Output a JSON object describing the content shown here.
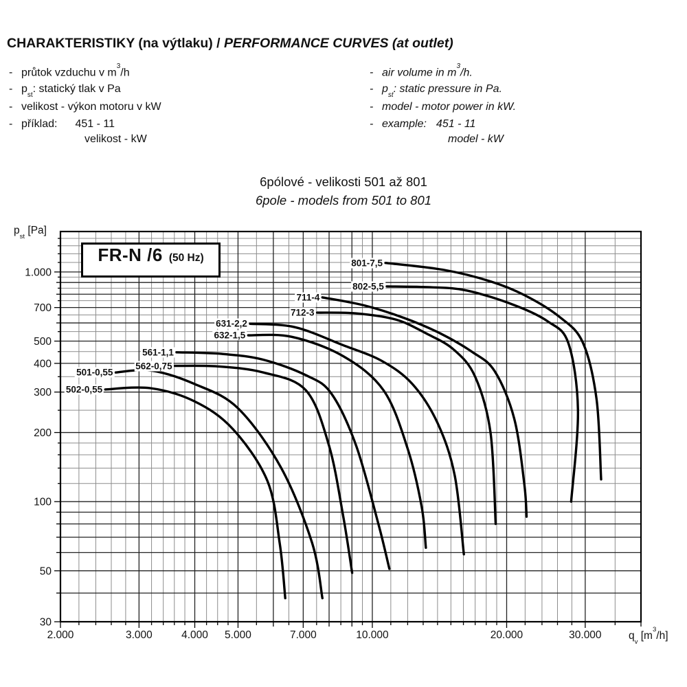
{
  "header": {
    "title_cz": "CHARAKTERISTIKY (na výtlaku) / ",
    "title_en": "PERFORMANCE CURVES (at outlet)"
  },
  "bullets": {
    "dash": "-"
  },
  "bullets_cz": {
    "air_pre": "průtok vzduchu v m",
    "air_sup": "3",
    "air_post": "/h",
    "pst_p": "p",
    "pst_sub": "st",
    "pst_post": ": statický tlak v Pa",
    "model": "velikost - výkon motoru v kW",
    "example_label": "příklad:",
    "example_value": "451 - 11",
    "example_sub": "velikost - kW"
  },
  "bullets_en": {
    "air_pre": "air volume in m",
    "air_sup": "3",
    "air_post": "/h.",
    "pst_p": "p",
    "pst_sub": "st",
    "pst_post": ": static pressure in Pa.",
    "model": "model - motor power in kW.",
    "example_label": "example:",
    "example_value": "451 - 11",
    "example_sub": "model - kW"
  },
  "subtitle": {
    "cz": "6pólové - velikosti 501 až 801",
    "en": "6pole - models from 501 to 801"
  },
  "chart_data": {
    "type": "line",
    "title": "FR-N /6 (50 Hz)",
    "box_title": "FR-N /6",
    "box_title_sub": "(50 Hz)",
    "ylabel": "pst [Pa]",
    "xlabel": "qv [m3/h]",
    "y_axis_label": {
      "pre": "p",
      "sub": "st",
      "post": " [Pa]"
    },
    "x_axis_label": {
      "pre": "q",
      "sub": "v",
      "mid": " [m",
      "sup": "3",
      "post": "/h]"
    },
    "x_scale": "log",
    "y_scale": "log",
    "xlim": [
      2000,
      40000
    ],
    "ylim": [
      30,
      1500
    ],
    "grid": "on",
    "x_ticks": [
      {
        "v": 2000,
        "label": "2.000"
      },
      {
        "v": 3000,
        "label": "3.000"
      },
      {
        "v": 4000,
        "label": "4.000"
      },
      {
        "v": 5000,
        "label": "5.000"
      },
      {
        "v": 7000,
        "label": "7.000"
      },
      {
        "v": 10000,
        "label": "10.000"
      },
      {
        "v": 20000,
        "label": "20.000"
      },
      {
        "v": 30000,
        "label": "30.000"
      }
    ],
    "y_ticks": [
      {
        "v": 1000,
        "label": "1.000"
      },
      {
        "v": 700,
        "label": "700"
      },
      {
        "v": 500,
        "label": "500"
      },
      {
        "v": 400,
        "label": "400"
      },
      {
        "v": 300,
        "label": "300"
      },
      {
        "v": 200,
        "label": "200"
      },
      {
        "v": 100,
        "label": "100"
      },
      {
        "v": 50,
        "label": "50"
      },
      {
        "v": 30,
        "label": "30"
      }
    ],
    "x_grid_major": [
      2000,
      3000,
      4000,
      5000,
      6000,
      7000,
      8000,
      9000,
      10000,
      20000,
      30000,
      40000
    ],
    "x_grid_minor": [
      2200,
      2400,
      2600,
      2800,
      3200,
      3400,
      3600,
      3800,
      4250,
      4500,
      4750,
      5500,
      6500,
      7500,
      8500,
      9500,
      11000,
      12000,
      13000,
      14000,
      15000,
      16000,
      17000,
      18000,
      19000,
      22000,
      24000,
      26000,
      28000,
      35000
    ],
    "y_grid_major": [
      30,
      40,
      50,
      60,
      70,
      80,
      90,
      100,
      200,
      300,
      400,
      500,
      600,
      700,
      800,
      900,
      1000
    ],
    "y_grid_minor": [
      120,
      140,
      160,
      180,
      250,
      350,
      450,
      550,
      650,
      750,
      850,
      950,
      1100,
      1200,
      1300,
      1400
    ],
    "series": [
      {
        "name": "801-7,5",
        "points": [
          [
            10700,
            1095
          ],
          [
            14500,
            1020
          ],
          [
            18400,
            910
          ],
          [
            22000,
            790
          ],
          [
            26200,
            640
          ],
          [
            29600,
            495
          ],
          [
            31800,
            280
          ],
          [
            32560,
            125
          ]
        ]
      },
      {
        "name": "802-5,5",
        "points": [
          [
            10770,
            865
          ],
          [
            13500,
            858
          ],
          [
            16300,
            830
          ],
          [
            20700,
            720
          ],
          [
            24700,
            610
          ],
          [
            27500,
            490
          ],
          [
            28900,
            250
          ],
          [
            27900,
            100
          ]
        ]
      },
      {
        "name": "711-4",
        "points": [
          [
            7730,
            775
          ],
          [
            9600,
            715
          ],
          [
            11800,
            630
          ],
          [
            14200,
            540
          ],
          [
            16700,
            450
          ],
          [
            18800,
            370
          ],
          [
            20800,
            230
          ],
          [
            21900,
            120
          ],
          [
            22170,
            86
          ]
        ]
      },
      {
        "name": "712-3",
        "points": [
          [
            7520,
            665
          ],
          [
            9200,
            660
          ],
          [
            11300,
            620
          ],
          [
            13200,
            540
          ],
          [
            15200,
            460
          ],
          [
            17000,
            350
          ],
          [
            18400,
            200
          ],
          [
            18900,
            80
          ]
        ]
      },
      {
        "name": "631-2,2",
        "points": [
          [
            5320,
            595
          ],
          [
            6700,
            575
          ],
          [
            8600,
            480
          ],
          [
            10500,
            410
          ],
          [
            12300,
            325
          ],
          [
            14000,
            220
          ],
          [
            15300,
            130
          ],
          [
            16040,
            59
          ]
        ]
      },
      {
        "name": "632-1,5",
        "points": [
          [
            5270,
            530
          ],
          [
            6600,
            522
          ],
          [
            8600,
            430
          ],
          [
            10600,
            305
          ],
          [
            12000,
            170
          ],
          [
            12900,
            95
          ],
          [
            13180,
            63
          ]
        ]
      },
      {
        "name": "561-1,1",
        "points": [
          [
            3640,
            447
          ],
          [
            4600,
            440
          ],
          [
            5700,
            415
          ],
          [
            7100,
            355
          ],
          [
            8100,
            295
          ],
          [
            9200,
            175
          ],
          [
            10300,
            81
          ],
          [
            10920,
            51
          ]
        ]
      },
      {
        "name": "562-0,75",
        "points": [
          [
            3610,
            390
          ],
          [
            4500,
            388
          ],
          [
            5700,
            365
          ],
          [
            7100,
            305
          ],
          [
            8000,
            175
          ],
          [
            8600,
            87
          ],
          [
            9010,
            49
          ]
        ]
      },
      {
        "name": "501-0,55",
        "points": [
          [
            2660,
            365
          ],
          [
            3200,
            372
          ],
          [
            4000,
            325
          ],
          [
            5000,
            255
          ],
          [
            6250,
            140
          ],
          [
            7330,
            66
          ],
          [
            7730,
            38
          ]
        ]
      },
      {
        "name": "502-0,55",
        "points": [
          [
            2520,
            308
          ],
          [
            3180,
            312
          ],
          [
            4000,
            273
          ],
          [
            4870,
            207
          ],
          [
            5820,
            123
          ],
          [
            6200,
            66
          ],
          [
            6380,
            38
          ]
        ]
      }
    ],
    "colors": {
      "curve": "#000000",
      "grid_major": "#222222",
      "grid_minor": "#8c8c8c",
      "frame": "#000000"
    }
  }
}
